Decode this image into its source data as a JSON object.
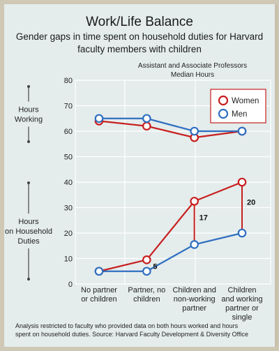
{
  "chart_data": {
    "type": "line",
    "title": "Work/Life Balance",
    "subtitle": [
      "Gender gaps in time spent on household duties for Harvard",
      "faculty members with children"
    ],
    "panel_title": [
      "Assistant and Associate Professors",
      "Median Hours"
    ],
    "categories": [
      [
        "No partner",
        "or children"
      ],
      [
        "Partner, no",
        "children"
      ],
      [
        "Children and",
        "non-working",
        "partner"
      ],
      [
        "Children",
        "and working",
        "partner or",
        "single"
      ]
    ],
    "ylim": [
      0,
      80
    ],
    "yticks": [
      0,
      10,
      20,
      30,
      40,
      50,
      60,
      70,
      80
    ],
    "row_labels": {
      "hours_working": [
        "Hours",
        "Working"
      ],
      "household": [
        "Hours",
        "on Household",
        "Duties"
      ]
    },
    "series": [
      {
        "name": "Women",
        "color": "#c81e1e",
        "working": [
          64,
          62,
          57.5,
          60
        ],
        "household": [
          5,
          9.5,
          32.5,
          40
        ]
      },
      {
        "name": "Men",
        "color": "#2f6fc0",
        "working": [
          65,
          65,
          60,
          60
        ],
        "household": [
          5,
          5,
          15.5,
          20
        ]
      }
    ],
    "gap_annotations": [
      {
        "category_index": 1,
        "label": "5"
      },
      {
        "category_index": 2,
        "label": "17"
      },
      {
        "category_index": 3,
        "label": "20"
      }
    ],
    "legend_position": "top-right",
    "grid": true
  },
  "footnote": [
    "Analysis restricted to faculty who provided data on both hours worked and hours",
    "spent on household duties. Source: Harvard Faculty Development & Diversity Office"
  ]
}
